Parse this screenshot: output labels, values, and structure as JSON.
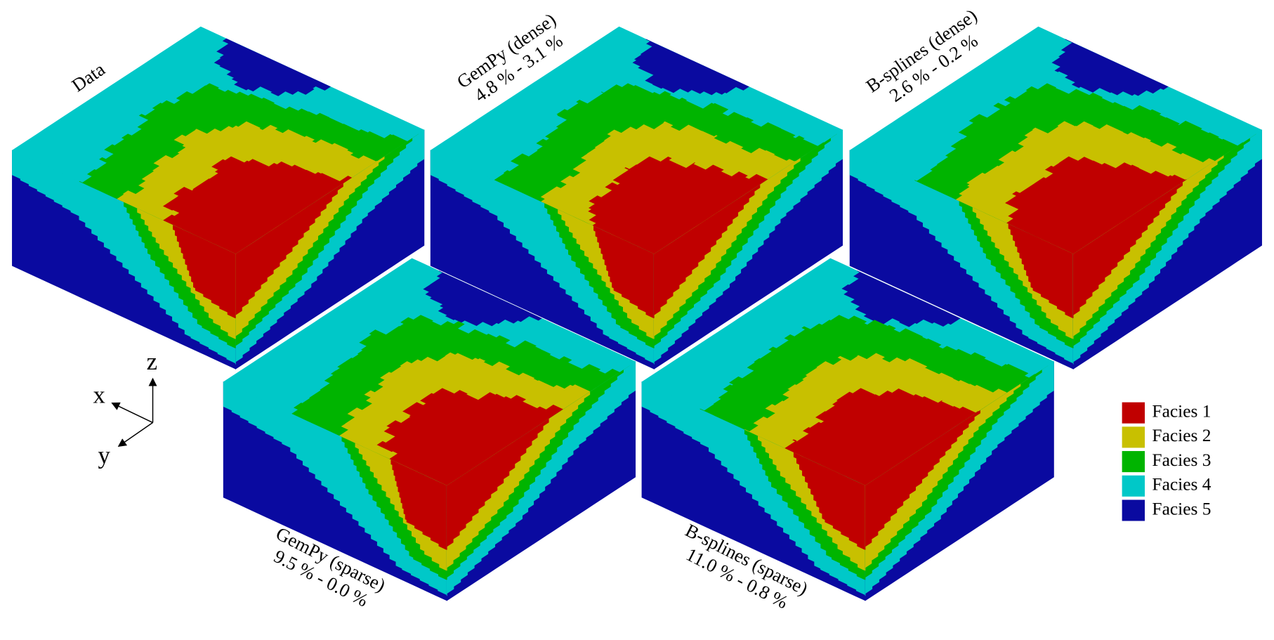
{
  "figure": {
    "panels": [
      {
        "title": "Data"
      },
      {
        "title": "GemPy (dense)",
        "errors": "4.8 % - 3.1 %"
      },
      {
        "title": "B-splines (dense)",
        "errors": "2.6 % - 0.2 %"
      },
      {
        "title": "GemPy (sparse)",
        "errors": "9.5 % - 0.0 %"
      },
      {
        "title": "B-splines (sparse)",
        "errors": "11.0 % - 0.8 %"
      }
    ],
    "axes": {
      "x": "x",
      "y": "y",
      "z": "z"
    },
    "legend": [
      {
        "label": "Facies 1",
        "color": "#c00000"
      },
      {
        "label": "Facies 2",
        "color": "#c8c000"
      },
      {
        "label": "Facies 3",
        "color": "#00b400"
      },
      {
        "label": "Facies 4",
        "color": "#00c8c8"
      },
      {
        "label": "Facies 5",
        "color": "#0a0aa0"
      }
    ]
  }
}
